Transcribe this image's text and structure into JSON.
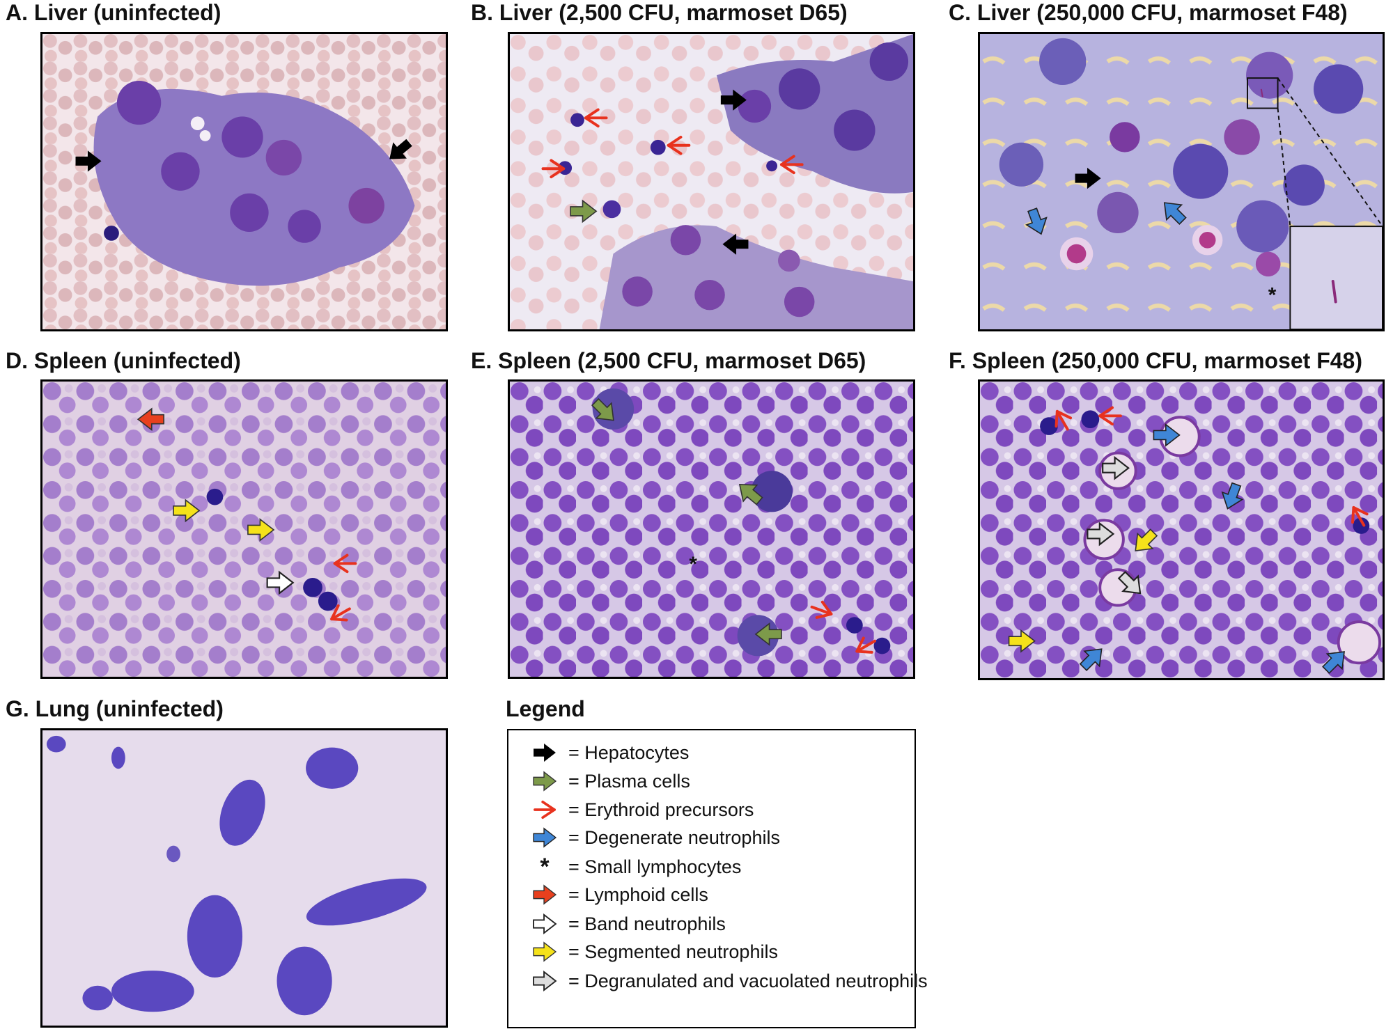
{
  "panels": {
    "a": {
      "title": "A.  Liver (uninfected)"
    },
    "b": {
      "title": "B.  Liver (2,500 CFU, marmoset D65)"
    },
    "c": {
      "title": "C.  Liver (250,000 CFU, marmoset F48)"
    },
    "d": {
      "title": "D.  Spleen (uninfected)"
    },
    "e": {
      "title": "E.  Spleen (2,500 CFU, marmoset D65)"
    },
    "f": {
      "title": "F.  Spleen (250,000 CFU, marmoset F48)"
    },
    "g": {
      "title": "G.  Lung (uninfected)"
    }
  },
  "legend": {
    "heading": "Legend",
    "items": [
      {
        "symbol": "hepatocyte-arrow",
        "color": "#000000",
        "label": "= Hepatocytes"
      },
      {
        "symbol": "plasma-arrow",
        "color": "#7d9a4a",
        "label": "= Plasma cells"
      },
      {
        "symbol": "erythroid-chevron",
        "color": "#e8321e",
        "label": "= Erythroid precursors"
      },
      {
        "symbol": "degenerate-arrow",
        "color": "#3f86d6",
        "label": "= Degenerate neutrophils"
      },
      {
        "symbol": "asterisk",
        "glyph": "*",
        "label": "= Small lymphocytes"
      },
      {
        "symbol": "lymphoid-arrow",
        "color": "#e8401e",
        "label": "= Lymphoid cells"
      },
      {
        "symbol": "band-arrow",
        "color": "#ffffff",
        "label": "= Band neutrophils"
      },
      {
        "symbol": "segmented-arrow",
        "color": "#f5e21a",
        "label": "= Segmented neutrophils"
      },
      {
        "symbol": "degranulated-arrow",
        "color": "#dddddd",
        "label": "= Degranulated and vacuolated neutrophils"
      }
    ]
  },
  "annotations": {
    "asterisk_glyph": "*"
  }
}
